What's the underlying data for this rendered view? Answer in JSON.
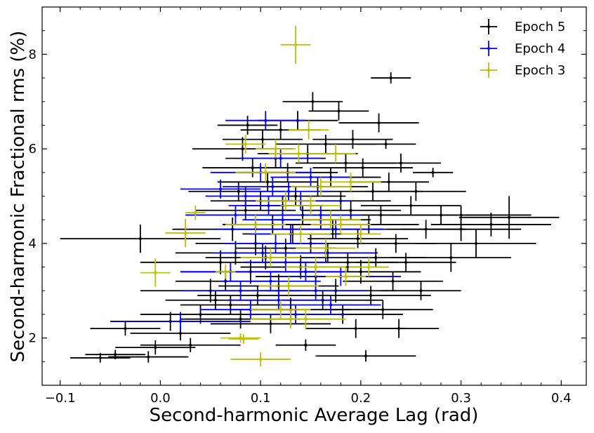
{
  "chart_data": {
    "type": "scatter",
    "xlabel": "Second-harmonic Average Lag (rad)",
    "ylabel": "Second-harmonic Fractional rms (%)",
    "xlim": [
      -0.118,
      0.425
    ],
    "ylim": [
      1.0,
      9.0
    ],
    "xticks": [
      -0.1,
      0.0,
      0.1,
      0.2,
      0.3,
      0.4
    ],
    "xtick_labels": [
      "−0.1",
      "0.0",
      "0.1",
      "0.2",
      "0.3",
      "0.4"
    ],
    "yticks": [
      2,
      4,
      6,
      8
    ],
    "ytick_labels": [
      "2",
      "4",
      "6",
      "8"
    ],
    "grid": false,
    "legend": "top-right",
    "series": [
      {
        "name": "Epoch 5",
        "color": "#000000",
        "points": [
          [
            -0.06,
            1.58,
            0.03,
            0.1
          ],
          [
            -0.045,
            1.65,
            0.03,
            0.1
          ],
          [
            -0.035,
            2.2,
            0.035,
            0.15
          ],
          [
            -0.02,
            4.1,
            0.08,
            0.3
          ],
          [
            -0.012,
            1.6,
            0.04,
            0.12
          ],
          [
            -0.005,
            1.8,
            0.04,
            0.15
          ],
          [
            0.01,
            2.35,
            0.06,
            0.2
          ],
          [
            0.02,
            2.1,
            0.05,
            0.15
          ],
          [
            0.03,
            1.85,
            0.05,
            0.15
          ],
          [
            0.04,
            2.5,
            0.06,
            0.2
          ],
          [
            0.05,
            3.0,
            0.07,
            0.25
          ],
          [
            0.055,
            2.8,
            0.05,
            0.2
          ],
          [
            0.06,
            3.6,
            0.08,
            0.25
          ],
          [
            0.065,
            3.2,
            0.05,
            0.2
          ],
          [
            0.07,
            2.7,
            0.05,
            0.2
          ],
          [
            0.072,
            4.3,
            0.06,
            0.25
          ],
          [
            0.075,
            3.8,
            0.06,
            0.25
          ],
          [
            0.078,
            5.1,
            0.05,
            0.2
          ],
          [
            0.08,
            2.4,
            0.06,
            0.2
          ],
          [
            0.082,
            6.0,
            0.05,
            0.25
          ],
          [
            0.085,
            4.7,
            0.05,
            0.2
          ],
          [
            0.087,
            6.5,
            0.03,
            0.2
          ],
          [
            0.09,
            3.4,
            0.07,
            0.25
          ],
          [
            0.092,
            5.6,
            0.05,
            0.2
          ],
          [
            0.095,
            4.0,
            0.06,
            0.25
          ],
          [
            0.097,
            2.9,
            0.06,
            0.2
          ],
          [
            0.1,
            4.9,
            0.05,
            0.2
          ],
          [
            0.102,
            6.2,
            0.04,
            0.2
          ],
          [
            0.105,
            3.7,
            0.06,
            0.25
          ],
          [
            0.107,
            5.3,
            0.05,
            0.2
          ],
          [
            0.11,
            2.3,
            0.06,
            0.2
          ],
          [
            0.112,
            4.4,
            0.05,
            0.2
          ],
          [
            0.115,
            5.8,
            0.05,
            0.2
          ],
          [
            0.118,
            3.1,
            0.06,
            0.25
          ],
          [
            0.12,
            6.4,
            0.04,
            0.2
          ],
          [
            0.122,
            4.8,
            0.04,
            0.2
          ],
          [
            0.125,
            3.9,
            0.05,
            0.2
          ],
          [
            0.127,
            5.5,
            0.05,
            0.2
          ],
          [
            0.13,
            2.6,
            0.06,
            0.25
          ],
          [
            0.132,
            4.2,
            0.05,
            0.2
          ],
          [
            0.135,
            5.0,
            0.05,
            0.2
          ],
          [
            0.137,
            6.6,
            0.04,
            0.2
          ],
          [
            0.14,
            3.5,
            0.06,
            0.25
          ],
          [
            0.142,
            4.6,
            0.05,
            0.2
          ],
          [
            0.145,
            1.85,
            0.03,
            0.12
          ],
          [
            0.147,
            5.9,
            0.05,
            0.2
          ],
          [
            0.15,
            4.0,
            0.05,
            0.2
          ],
          [
            0.152,
            7.0,
            0.03,
            0.2
          ],
          [
            0.155,
            3.3,
            0.06,
            0.25
          ],
          [
            0.157,
            5.2,
            0.05,
            0.2
          ],
          [
            0.16,
            4.5,
            0.05,
            0.2
          ],
          [
            0.162,
            2.8,
            0.06,
            0.2
          ],
          [
            0.165,
            6.1,
            0.05,
            0.2
          ],
          [
            0.167,
            3.8,
            0.05,
            0.2
          ],
          [
            0.17,
            5.4,
            0.05,
            0.2
          ],
          [
            0.172,
            4.3,
            0.05,
            0.2
          ],
          [
            0.175,
            3.0,
            0.06,
            0.25
          ],
          [
            0.178,
            6.8,
            0.03,
            0.2
          ],
          [
            0.18,
            4.9,
            0.05,
            0.2
          ],
          [
            0.182,
            2.5,
            0.06,
            0.2
          ],
          [
            0.185,
            5.7,
            0.05,
            0.2
          ],
          [
            0.187,
            3.6,
            0.05,
            0.2
          ],
          [
            0.19,
            4.7,
            0.05,
            0.2
          ],
          [
            0.192,
            6.2,
            0.04,
            0.2
          ],
          [
            0.195,
            2.2,
            0.05,
            0.2
          ],
          [
            0.197,
            4.1,
            0.05,
            0.2
          ],
          [
            0.2,
            3.4,
            0.06,
            0.25
          ],
          [
            0.202,
            5.6,
            0.05,
            0.2
          ],
          [
            0.205,
            1.62,
            0.05,
            0.12
          ],
          [
            0.208,
            4.4,
            0.05,
            0.2
          ],
          [
            0.21,
            2.9,
            0.06,
            0.2
          ],
          [
            0.212,
            5.1,
            0.05,
            0.2
          ],
          [
            0.215,
            3.7,
            0.05,
            0.2
          ],
          [
            0.218,
            6.55,
            0.04,
            0.2
          ],
          [
            0.22,
            4.6,
            0.04,
            0.2
          ],
          [
            0.222,
            2.6,
            0.05,
            0.2
          ],
          [
            0.225,
            6.1,
            0.03,
            0.1
          ],
          [
            0.228,
            5.3,
            0.04,
            0.2
          ],
          [
            0.23,
            7.5,
            0.02,
            0.12
          ],
          [
            0.232,
            3.2,
            0.05,
            0.2
          ],
          [
            0.235,
            4.0,
            0.04,
            0.2
          ],
          [
            0.238,
            2.2,
            0.04,
            0.2
          ],
          [
            0.24,
            5.7,
            0.04,
            0.2
          ],
          [
            0.245,
            3.6,
            0.05,
            0.2
          ],
          [
            0.25,
            4.8,
            0.05,
            0.2
          ],
          [
            0.255,
            5.1,
            0.05,
            0.2
          ],
          [
            0.26,
            3.0,
            0.04,
            0.2
          ],
          [
            0.265,
            4.3,
            0.04,
            0.2
          ],
          [
            0.272,
            5.5,
            0.02,
            0.1
          ],
          [
            0.28,
            4.6,
            0.05,
            0.2
          ],
          [
            0.29,
            3.7,
            0.06,
            0.3
          ],
          [
            0.3,
            4.3,
            0.06,
            0.25
          ],
          [
            0.315,
            4.0,
            0.06,
            0.3
          ],
          [
            0.33,
            4.4,
            0.06,
            0.25
          ],
          [
            0.348,
            4.55,
            0.05,
            0.45
          ],
          [
            0.3,
            4.6,
            0.07,
            0.2
          ]
        ]
      },
      {
        "name": "Epoch 4",
        "color": "#0000ff",
        "points": [
          [
            0.02,
            2.35,
            0.07,
            0.2
          ],
          [
            0.06,
            5.15,
            0.04,
            0.2
          ],
          [
            0.07,
            3.4,
            0.05,
            0.2
          ],
          [
            0.075,
            4.6,
            0.05,
            0.2
          ],
          [
            0.08,
            3.0,
            0.06,
            0.2
          ],
          [
            0.085,
            5.0,
            0.04,
            0.2
          ],
          [
            0.09,
            2.6,
            0.05,
            0.2
          ],
          [
            0.095,
            4.3,
            0.04,
            0.2
          ],
          [
            0.1,
            5.5,
            0.05,
            0.2
          ],
          [
            0.102,
            3.8,
            0.05,
            0.2
          ],
          [
            0.105,
            6.6,
            0.04,
            0.2
          ],
          [
            0.108,
            4.8,
            0.04,
            0.2
          ],
          [
            0.11,
            3.2,
            0.05,
            0.2
          ],
          [
            0.112,
            5.2,
            0.05,
            0.2
          ],
          [
            0.115,
            4.0,
            0.05,
            0.2
          ],
          [
            0.118,
            2.8,
            0.05,
            0.2
          ],
          [
            0.12,
            5.8,
            0.04,
            0.2
          ],
          [
            0.122,
            4.5,
            0.04,
            0.2
          ],
          [
            0.125,
            3.6,
            0.04,
            0.2
          ],
          [
            0.128,
            5.1,
            0.04,
            0.2
          ],
          [
            0.13,
            4.2,
            0.04,
            0.2
          ],
          [
            0.135,
            2.5,
            0.05,
            0.2
          ],
          [
            0.14,
            4.9,
            0.05,
            0.2
          ],
          [
            0.145,
            3.4,
            0.04,
            0.2
          ],
          [
            0.15,
            5.4,
            0.04,
            0.2
          ],
          [
            0.155,
            3.0,
            0.05,
            0.2
          ],
          [
            0.16,
            4.6,
            0.04,
            0.2
          ],
          [
            0.165,
            3.8,
            0.05,
            0.2
          ],
          [
            0.17,
            2.7,
            0.05,
            0.2
          ],
          [
            0.175,
            4.3,
            0.05,
            0.2
          ],
          [
            0.18,
            3.3,
            0.06,
            0.2
          ]
        ]
      },
      {
        "name": "Epoch 3",
        "color": "#bfbf00",
        "points": [
          [
            -0.005,
            3.38,
            0.015,
            0.3
          ],
          [
            0.025,
            4.22,
            0.02,
            0.3
          ],
          [
            0.035,
            4.65,
            0.01,
            0.15
          ],
          [
            0.065,
            3.4,
            0.01,
            0.15
          ],
          [
            0.08,
            2.0,
            0.02,
            0.1
          ],
          [
            0.083,
            1.98,
            0.015,
            0.1
          ],
          [
            0.085,
            6.1,
            0.02,
            0.2
          ],
          [
            0.095,
            4.4,
            0.03,
            0.2
          ],
          [
            0.1,
            1.55,
            0.03,
            0.15
          ],
          [
            0.105,
            5.5,
            0.03,
            0.2
          ],
          [
            0.11,
            3.7,
            0.03,
            0.2
          ],
          [
            0.115,
            6.0,
            0.02,
            0.2
          ],
          [
            0.12,
            2.6,
            0.03,
            0.2
          ],
          [
            0.125,
            4.9,
            0.03,
            0.2
          ],
          [
            0.128,
            3.1,
            0.03,
            0.2
          ],
          [
            0.13,
            2.4,
            0.04,
            0.2
          ],
          [
            0.135,
            8.2,
            0.015,
            0.4
          ],
          [
            0.138,
            5.9,
            0.03,
            0.2
          ],
          [
            0.14,
            4.2,
            0.03,
            0.2
          ],
          [
            0.145,
            2.4,
            0.04,
            0.2
          ],
          [
            0.148,
            6.4,
            0.02,
            0.2
          ],
          [
            0.15,
            4.8,
            0.03,
            0.2
          ],
          [
            0.155,
            3.5,
            0.03,
            0.2
          ],
          [
            0.16,
            5.2,
            0.03,
            0.2
          ],
          [
            0.165,
            3.9,
            0.03,
            0.2
          ],
          [
            0.17,
            4.5,
            0.03,
            0.2
          ],
          [
            0.175,
            5.9,
            0.02,
            0.2
          ],
          [
            0.18,
            4.4,
            0.03,
            0.2
          ],
          [
            0.185,
            3.3,
            0.02,
            0.2
          ],
          [
            0.19,
            5.3,
            0.03,
            0.2
          ],
          [
            0.2,
            4.2,
            0.02,
            0.2
          ],
          [
            0.208,
            3.5,
            0.02,
            0.2
          ]
        ]
      }
    ]
  }
}
